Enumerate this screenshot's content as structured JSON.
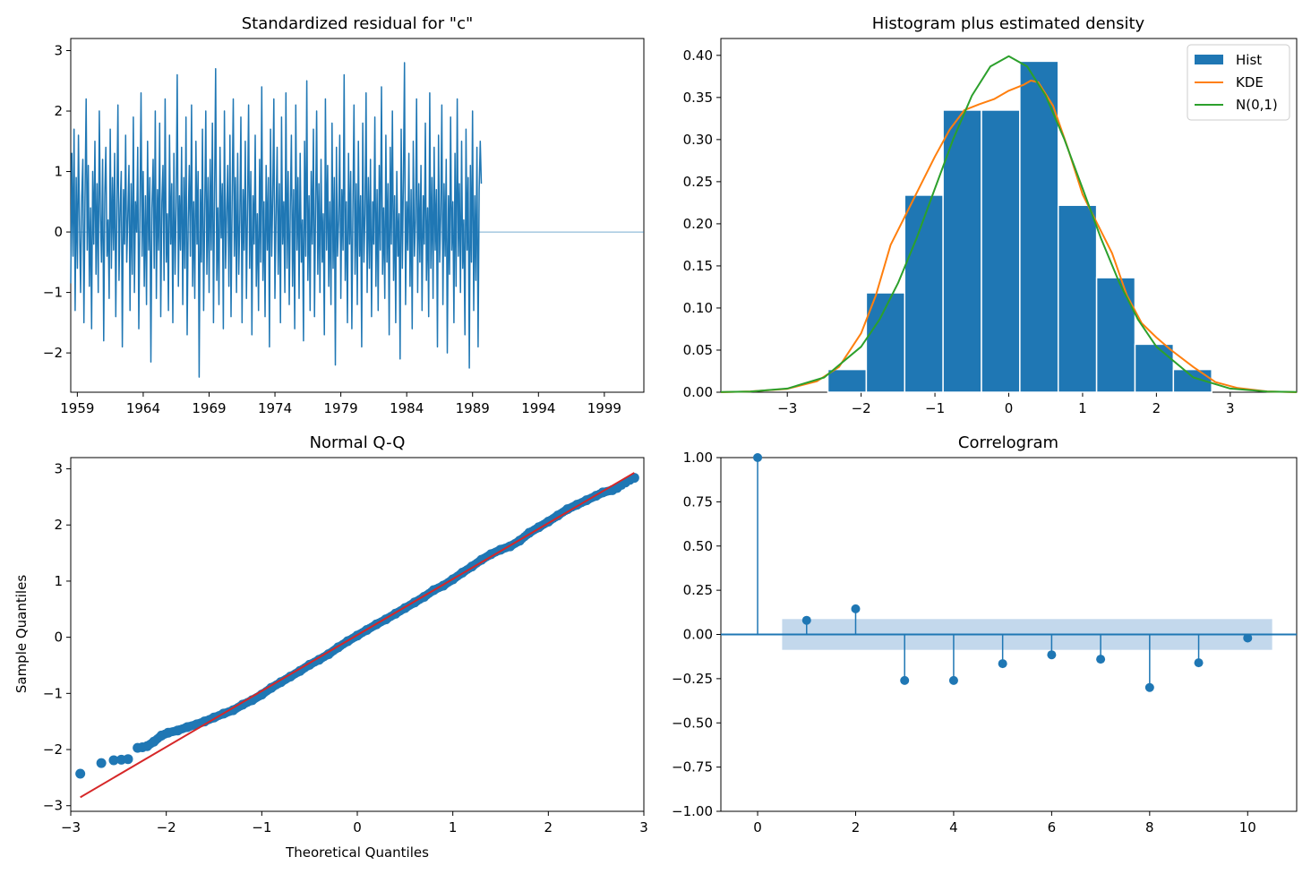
{
  "figure_colors": {
    "blue": "#1f77b4",
    "orange": "#ff7f0e",
    "green": "#2ca02c",
    "red": "#d62728",
    "band": "#c3d8ec"
  },
  "chart_data": [
    {
      "id": "resid",
      "type": "line",
      "title": "Standardized residual for \"c\"",
      "xlabel": "",
      "ylabel": "",
      "xlim": [
        1958.5,
        2002.0
      ],
      "ylim": [
        -2.65,
        3.2
      ],
      "xticks": [
        1959,
        1964,
        1969,
        1974,
        1979,
        1984,
        1989,
        1994,
        1999
      ],
      "xtick_labels": [
        "1959",
        "1964",
        "1969",
        "1974",
        "1979",
        "1984",
        "1989",
        "1994",
        "1999"
      ],
      "yticks": [
        -2,
        -1,
        0,
        1,
        2,
        3
      ],
      "ytick_labels": [
        "−2",
        "−1",
        "0",
        "1",
        "2",
        "3"
      ],
      "zero_line": 0,
      "start": 1958.5,
      "step": 0.0833333,
      "series": [
        {
          "name": "residual",
          "values": [
            -0.85,
            1.3,
            -0.4,
            1.7,
            -1.3,
            0.9,
            -0.6,
            1.6,
            0.1,
            -1.0,
            0.6,
            1.2,
            -1.5,
            0.5,
            2.2,
            -0.3,
            1.1,
            -0.9,
            0.4,
            -1.6,
            1.0,
            -0.2,
            1.5,
            -0.7,
            0.8,
            -1.0,
            2.0,
            0.3,
            -0.5,
            1.2,
            -1.8,
            0.6,
            1.4,
            -0.4,
            0.2,
            -1.1,
            1.7,
            -0.6,
            0.9,
            -0.3,
            1.3,
            -1.4,
            0.5,
            2.1,
            -0.8,
            0.4,
            1.0,
            -1.9,
            0.7,
            -0.2,
            1.6,
            -0.5,
            0.3,
            1.1,
            -1.3,
            0.8,
            -0.7,
            1.9,
            -1.0,
            0.5,
            0.0,
            1.4,
            -1.6,
            0.2,
            2.3,
            -0.4,
            1.0,
            -0.9,
            0.6,
            -1.2,
            1.5,
            -0.3,
            0.9,
            -2.15,
            0.4,
            1.2,
            -0.6,
            2.0,
            -1.1,
            0.7,
            -0.3,
            1.8,
            -1.4,
            0.5,
            1.1,
            -0.8,
            2.2,
            -0.5,
            0.3,
            -1.3,
            1.6,
            -0.2,
            0.8,
            -1.5,
            1.3,
            -0.7,
            0.4,
            2.6,
            -0.9,
            0.6,
            -0.3,
            1.4,
            -1.2,
            0.9,
            -0.6,
            1.9,
            -1.7,
            0.2,
            1.1,
            -0.4,
            2.1,
            -0.9,
            0.5,
            -1.1,
            1.5,
            -0.2,
            1.0,
            -2.4,
            0.7,
            -0.5,
            1.7,
            -1.3,
            0.3,
            2.0,
            -0.7,
            0.9,
            -1.0,
            1.2,
            -0.3,
            1.8,
            -1.5,
            0.6,
            2.7,
            -0.8,
            0.4,
            -1.2,
            1.4,
            -0.1,
            0.8,
            -1.6,
            2.0,
            -0.6,
            0.3,
            1.1,
            -0.9,
            1.6,
            -1.4,
            0.5,
            2.2,
            -0.4,
            0.9,
            -1.0,
            1.3,
            -0.7,
            0.2,
            1.9,
            -1.5,
            0.7,
            -0.3,
            1.5,
            -1.1,
            0.4,
            2.1,
            -0.6,
            1.0,
            -1.7,
            0.6,
            -0.2,
            1.6,
            -0.9,
            0.3,
            -1.3,
            1.2,
            -0.5,
            2.4,
            -0.8,
            0.5,
            -1.4,
            1.1,
            -0.3,
            0.9,
            -1.9,
            1.7,
            -0.4,
            0.6,
            2.2,
            -1.1,
            0.3,
            1.4,
            -0.7,
            0.8,
            -1.5,
            1.9,
            -0.2,
            0.5,
            -1.0,
            2.3,
            -0.6,
            1.0,
            -1.2,
            0.4,
            1.6,
            -0.9,
            0.7,
            -1.6,
            2.1,
            -0.3,
            0.9,
            -1.1,
            1.3,
            -0.5,
            0.2,
            -1.8,
            1.5,
            -0.4,
            2.5,
            -0.8,
            0.6,
            -1.3,
            1.0,
            -0.2,
            1.7,
            -1.4,
            0.4,
            2.0,
            -0.7,
            0.8,
            -1.0,
            1.2,
            -0.5,
            0.3,
            -1.7,
            2.2,
            -0.3,
            1.1,
            -0.9,
            0.5,
            -1.2,
            1.8,
            -0.6,
            0.9,
            -2.2,
            1.4,
            -0.4,
            0.2,
            1.6,
            -1.1,
            0.7,
            -0.3,
            2.6,
            -0.8,
            0.5,
            -1.5,
            1.3,
            -0.2,
            1.0,
            -1.6,
            0.4,
            2.1,
            -0.7,
            0.8,
            -1.2,
            1.5,
            -0.4,
            0.6,
            -1.9,
            1.8,
            -0.5,
            0.3,
            2.3,
            -1.0,
            0.9,
            -0.6,
            1.2,
            -1.4,
            0.5,
            -0.2,
            1.9,
            -0.9,
            0.7,
            -1.3,
            1.1,
            -0.3,
            2.4,
            -0.7,
            0.4,
            -1.1,
            1.6,
            -0.5,
            0.8,
            -1.7,
            1.4,
            -0.2,
            2.0,
            -0.8,
            0.6,
            -1.5,
            1.0,
            -0.4,
            0.3,
            -2.1,
            1.7,
            -0.6,
            0.9,
            2.8,
            -1.2,
            0.5,
            -0.3,
            1.3,
            -0.9,
            0.7,
            -1.6,
            1.5,
            -0.4,
            0.2,
            2.2,
            -1.0,
            0.8,
            -0.5,
            1.1,
            -1.3,
            0.6,
            -0.2,
            1.8,
            -0.8,
            0.4,
            -1.4,
            2.3,
            -0.6,
            0.9,
            -1.1,
            1.4,
            -0.3,
            0.7,
            -1.9,
            1.6,
            -0.5,
            0.3,
            2.1,
            -1.2,
            0.8,
            -0.4,
            1.2,
            -2.0,
            0.6,
            -0.7,
            1.9,
            -0.3,
            0.5,
            -1.5,
            1.3,
            -0.9,
            2.2,
            -0.4,
            0.8,
            -1.0,
            1.5,
            -0.6,
            0.2,
            -1.7,
            1.7,
            -0.3,
            0.9,
            -2.25,
            1.1,
            -0.5,
            2.0,
            -1.3,
            0.6,
            -0.8,
            1.4,
            -1.9,
            0.7,
            1.5,
            0.8
          ]
        }
      ]
    },
    {
      "id": "hist",
      "type": "bar",
      "title": "Histogram plus estimated density",
      "xlabel": "",
      "ylabel": "",
      "xlim": [
        -3.9,
        3.9
      ],
      "ylim": [
        0,
        0.42
      ],
      "xticks": [
        -3,
        -2,
        -1,
        0,
        1,
        2,
        3
      ],
      "xtick_labels": [
        "−3",
        "−2",
        "−1",
        "0",
        "1",
        "2",
        "3"
      ],
      "yticks": [
        0,
        0.05,
        0.1,
        0.15,
        0.2,
        0.25,
        0.3,
        0.35,
        0.4
      ],
      "ytick_labels": [
        "0.00",
        "0.05",
        "0.10",
        "0.15",
        "0.20",
        "0.25",
        "0.30",
        "0.35",
        "0.40"
      ],
      "bin_edges": [
        -2.45,
        -1.93,
        -1.41,
        -0.89,
        -0.37,
        0.15,
        0.67,
        1.19,
        1.71,
        2.23,
        2.75
      ],
      "values": [
        0.027,
        0.118,
        0.234,
        0.335,
        0.335,
        0.393,
        0.222,
        0.136,
        0.057,
        0.027
      ],
      "legend": [
        "Hist",
        "KDE",
        "N(0,1)"
      ],
      "legend_position": "top-right",
      "series": [
        {
          "name": "KDE",
          "x": [
            -3.9,
            -3.5,
            -3.0,
            -2.6,
            -2.3,
            -2.0,
            -1.8,
            -1.6,
            -1.4,
            -1.2,
            -1.0,
            -0.8,
            -0.6,
            -0.4,
            -0.2,
            0.0,
            0.2,
            0.3,
            0.4,
            0.6,
            0.8,
            1.0,
            1.2,
            1.4,
            1.6,
            1.8,
            2.0,
            2.2,
            2.5,
            2.8,
            3.1,
            3.5,
            3.9
          ],
          "y": [
            0.0,
            0.001,
            0.004,
            0.013,
            0.03,
            0.07,
            0.115,
            0.175,
            0.21,
            0.245,
            0.28,
            0.312,
            0.335,
            0.342,
            0.348,
            0.358,
            0.365,
            0.37,
            0.368,
            0.34,
            0.29,
            0.235,
            0.2,
            0.165,
            0.115,
            0.082,
            0.065,
            0.05,
            0.03,
            0.012,
            0.005,
            0.001,
            0.0
          ]
        },
        {
          "name": "N(0,1)",
          "x": [
            -3.9,
            -3.5,
            -3.0,
            -2.5,
            -2.0,
            -1.75,
            -1.5,
            -1.25,
            -1.0,
            -0.75,
            -0.5,
            -0.25,
            0.0,
            0.25,
            0.5,
            0.75,
            1.0,
            1.25,
            1.5,
            1.75,
            2.0,
            2.5,
            3.0,
            3.5,
            3.9
          ],
          "y": [
            0.0002,
            0.0009,
            0.0044,
            0.0175,
            0.054,
            0.0863,
            0.1295,
            0.1826,
            0.242,
            0.3011,
            0.3521,
            0.3867,
            0.3989,
            0.3867,
            0.3521,
            0.3011,
            0.242,
            0.1826,
            0.1295,
            0.0863,
            0.054,
            0.0175,
            0.0044,
            0.0009,
            0.0002
          ]
        }
      ]
    },
    {
      "id": "qq",
      "type": "scatter",
      "title": "Normal Q-Q",
      "xlabel": "Theoretical Quantiles",
      "ylabel": "Sample Quantiles",
      "xlim": [
        -3.0,
        3.0
      ],
      "ylim": [
        -3.1,
        3.2
      ],
      "xticks": [
        -3,
        -2,
        -1,
        0,
        1,
        2,
        3
      ],
      "xtick_labels": [
        "−3",
        "−2",
        "−1",
        "0",
        "1",
        "2",
        "3"
      ],
      "yticks": [
        -3,
        -2,
        -1,
        0,
        1,
        2,
        3
      ],
      "ytick_labels": [
        "−3",
        "−2",
        "−1",
        "0",
        "1",
        "2",
        "3"
      ],
      "line": {
        "x": [
          -2.9,
          2.9
        ],
        "y": [
          -2.85,
          2.93
        ]
      },
      "points": [
        [
          -2.9,
          -2.43
        ],
        [
          -2.68,
          -2.24
        ],
        [
          -2.55,
          -2.19
        ],
        [
          -2.47,
          -2.18
        ],
        [
          -2.4,
          -2.17
        ],
        [
          -2.3,
          -1.97
        ],
        [
          -2.25,
          -1.96
        ],
        [
          -2.2,
          -1.94
        ],
        [
          -2.13,
          -1.86
        ],
        [
          -2.05,
          -1.75
        ],
        [
          -1.98,
          -1.7
        ],
        [
          -1.88,
          -1.66
        ],
        [
          -1.78,
          -1.6
        ],
        [
          -1.68,
          -1.55
        ],
        [
          -1.6,
          -1.5
        ],
        [
          -1.5,
          -1.43
        ],
        [
          -1.4,
          -1.36
        ],
        [
          -1.3,
          -1.3
        ],
        [
          -1.2,
          -1.2
        ],
        [
          -1.1,
          -1.12
        ],
        [
          -1.0,
          -1.02
        ],
        [
          -0.9,
          -0.9
        ],
        [
          -0.8,
          -0.8
        ],
        [
          -0.7,
          -0.7
        ],
        [
          -0.6,
          -0.6
        ],
        [
          -0.5,
          -0.49
        ],
        [
          -0.4,
          -0.4
        ],
        [
          -0.3,
          -0.3
        ],
        [
          -0.2,
          -0.18
        ],
        [
          -0.1,
          -0.07
        ],
        [
          0.0,
          0.03
        ],
        [
          0.1,
          0.13
        ],
        [
          0.2,
          0.23
        ],
        [
          0.3,
          0.32
        ],
        [
          0.4,
          0.42
        ],
        [
          0.5,
          0.52
        ],
        [
          0.6,
          0.62
        ],
        [
          0.7,
          0.72
        ],
        [
          0.8,
          0.84
        ],
        [
          0.9,
          0.92
        ],
        [
          1.0,
          1.03
        ],
        [
          1.1,
          1.15
        ],
        [
          1.2,
          1.26
        ],
        [
          1.3,
          1.38
        ],
        [
          1.4,
          1.48
        ],
        [
          1.5,
          1.56
        ],
        [
          1.6,
          1.62
        ],
        [
          1.7,
          1.72
        ],
        [
          1.8,
          1.86
        ],
        [
          1.9,
          1.96
        ],
        [
          2.0,
          2.06
        ],
        [
          2.1,
          2.17
        ],
        [
          2.2,
          2.28
        ],
        [
          2.3,
          2.36
        ],
        [
          2.4,
          2.44
        ],
        [
          2.5,
          2.52
        ],
        [
          2.57,
          2.58
        ],
        [
          2.67,
          2.62
        ],
        [
          2.72,
          2.66
        ],
        [
          2.9,
          2.84
        ]
      ]
    },
    {
      "id": "acf",
      "type": "stem",
      "title": "Correlogram",
      "xlabel": "",
      "ylabel": "",
      "xlim": [
        -0.75,
        11.0
      ],
      "ylim": [
        -1.0,
        1.0
      ],
      "xticks": [
        0,
        2,
        4,
        6,
        8,
        10
      ],
      "xtick_labels": [
        "0",
        "2",
        "4",
        "6",
        "8",
        "10"
      ],
      "yticks": [
        -1.0,
        -0.75,
        -0.5,
        -0.25,
        0,
        0.25,
        0.5,
        0.75,
        1.0
      ],
      "ytick_labels": [
        "−1.00",
        "−0.75",
        "−0.50",
        "−0.25",
        "0.00",
        "0.25",
        "0.50",
        "0.75",
        "1.00"
      ],
      "lags": [
        0,
        1,
        2,
        3,
        4,
        5,
        6,
        7,
        8,
        9,
        10
      ],
      "values": [
        1.0,
        0.08,
        0.145,
        -0.26,
        -0.26,
        -0.165,
        -0.115,
        -0.14,
        -0.3,
        -0.16,
        -0.02
      ],
      "confidence_band": {
        "x": [
          0.5,
          10.5
        ],
        "upper": 0.087,
        "lower": -0.087
      }
    }
  ]
}
